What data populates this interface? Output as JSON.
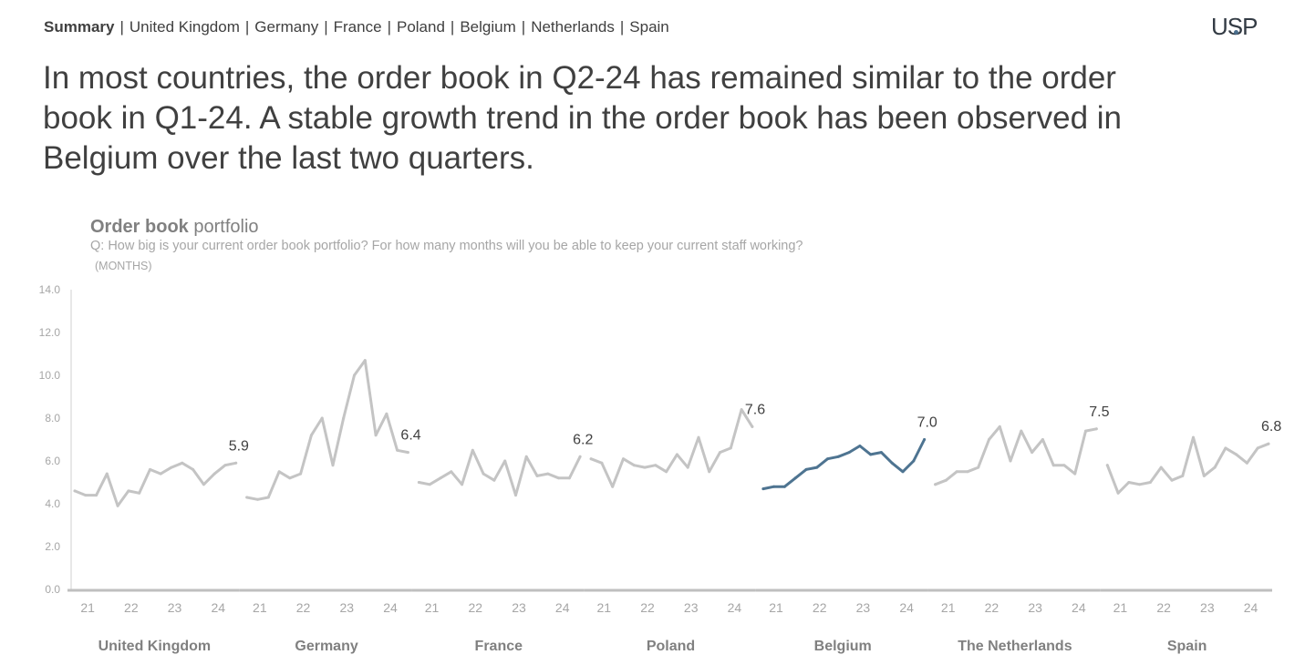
{
  "nav": {
    "items": [
      {
        "label": "Summary",
        "active": true
      },
      {
        "label": "United Kingdom",
        "active": false
      },
      {
        "label": "Germany",
        "active": false
      },
      {
        "label": "France",
        "active": false
      },
      {
        "label": "Poland",
        "active": false
      },
      {
        "label": "Belgium",
        "active": false
      },
      {
        "label": "Netherlands",
        "active": false
      },
      {
        "label": "Spain",
        "active": false
      }
    ],
    "separator": "|"
  },
  "logo": {
    "text_pre": "U",
    "text_mid": "S",
    "text_post": "P"
  },
  "headline": "In most countries, the order book in Q2-24 has remained similar to the order book in Q1-24. A stable growth trend in the order book has been observed in Belgium over the last two quarters.",
  "chart_header": {
    "title_bold": "Order book",
    "title_rest": " portfolio",
    "question": "Q: How big is your current order book portfolio? For how many months will you be able to keep your current staff working?",
    "unit": "(MONTHS)"
  },
  "chart_data": {
    "type": "line",
    "title": "Order book portfolio",
    "ylabel": "(MONTHS)",
    "ylim": [
      0,
      14
    ],
    "yticks": [
      "0.0",
      "2.0",
      "4.0",
      "6.0",
      "8.0",
      "10.0",
      "12.0",
      "14.0"
    ],
    "x_ticks": [
      "21",
      "22",
      "23",
      "24"
    ],
    "grid": false,
    "highlight_color": "#4e7491",
    "muted_color": "#c4c4c4",
    "panels": [
      {
        "name": "United Kingdom",
        "last_label": "5.9",
        "highlight": false,
        "values": [
          4.6,
          4.4,
          4.4,
          5.4,
          3.9,
          4.6,
          4.5,
          5.6,
          5.4,
          5.7,
          5.9,
          5.6,
          4.9,
          5.4,
          5.8,
          5.9
        ]
      },
      {
        "name": "Germany",
        "last_label": "6.4",
        "highlight": false,
        "values": [
          4.3,
          4.2,
          4.3,
          5.5,
          5.2,
          5.4,
          7.2,
          8.0,
          5.8,
          8.0,
          10.0,
          10.7,
          7.2,
          8.2,
          6.5,
          6.4
        ]
      },
      {
        "name": "France",
        "last_label": "6.2",
        "highlight": false,
        "values": [
          5.0,
          4.9,
          5.2,
          5.5,
          4.9,
          6.5,
          5.4,
          5.1,
          6.0,
          4.4,
          6.2,
          5.3,
          5.4,
          5.2,
          5.2,
          6.2
        ]
      },
      {
        "name": "Poland",
        "last_label": "7.6",
        "highlight": false,
        "values": [
          6.1,
          5.9,
          4.8,
          6.1,
          5.8,
          5.7,
          5.8,
          5.5,
          6.3,
          5.7,
          7.1,
          5.5,
          6.4,
          6.6,
          8.4,
          7.6
        ]
      },
      {
        "name": "Belgium",
        "last_label": "7.0",
        "highlight": true,
        "values": [
          4.7,
          4.8,
          4.8,
          5.2,
          5.6,
          5.7,
          6.1,
          6.2,
          6.4,
          6.7,
          6.3,
          6.4,
          5.9,
          5.5,
          6.0,
          7.0
        ]
      },
      {
        "name": "The Netherlands",
        "last_label": "7.5",
        "highlight": false,
        "values": [
          4.9,
          5.1,
          5.5,
          5.5,
          5.7,
          7.0,
          7.6,
          6.0,
          7.4,
          6.4,
          7.0,
          5.8,
          5.8,
          5.4,
          7.4,
          7.5
        ]
      },
      {
        "name": "Spain",
        "last_label": "6.8",
        "highlight": false,
        "values": [
          5.8,
          4.5,
          5.0,
          4.9,
          5.0,
          5.7,
          5.1,
          5.3,
          7.1,
          5.3,
          5.7,
          6.6,
          6.3,
          5.9,
          6.6,
          6.8
        ]
      }
    ]
  }
}
